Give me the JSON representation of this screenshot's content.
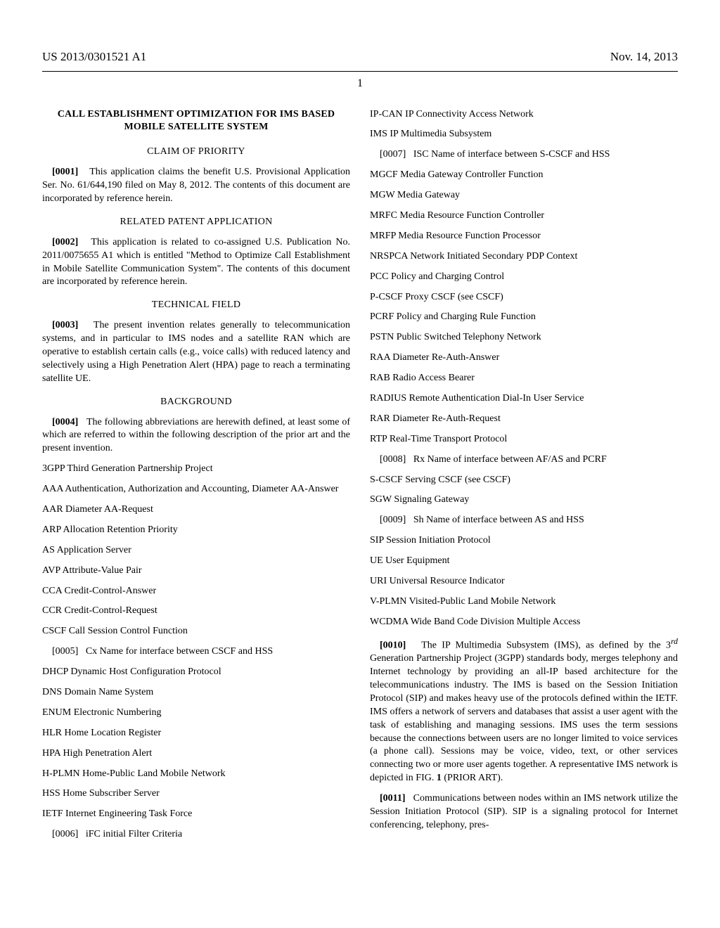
{
  "header": {
    "left": "US 2013/0301521 A1",
    "right": "Nov. 14, 2013"
  },
  "page_number": "1",
  "title": "CALL ESTABLISHMENT OPTIMIZATION FOR IMS BASED MOBILE SATELLITE SYSTEM",
  "sections": {
    "claim": "CLAIM OF PRIORITY",
    "related": "RELATED PATENT APPLICATION",
    "tech": "TECHNICAL FIELD",
    "bg": "BACKGROUND"
  },
  "p": {
    "p0001_num": "[0001]",
    "p0001": "This application claims the benefit U.S. Provisional Application Ser. No. 61/644,190 filed on May 8, 2012. The contents of this document are incorporated by reference herein.",
    "p0002_num": "[0002]",
    "p0002": "This application is related to co-assigned U.S. Publication No. 2011/0075655 A1 which is entitled \"Method to Optimize Call Establishment in Mobile Satellite Communication System\". The contents of this document are incorporated by reference herein.",
    "p0003_num": "[0003]",
    "p0003": "The present invention relates generally to telecommunication systems, and in particular to IMS nodes and a satellite RAN which are operative to establish certain calls (e.g., voice calls) with reduced latency and selectively using a High Penetration Alert (HPA) page to reach a terminating satellite UE.",
    "p0004_num": "[0004]",
    "p0004": "The following abbreviations are herewith defined, at least some of which are referred to within the following description of the prior art and the present invention.",
    "p0005_num": "[0005]",
    "p0005": "Cx Name for interface between CSCF and HSS",
    "p0006_num": "[0006]",
    "p0006": "iFC initial Filter Criteria",
    "p0007_num": "[0007]",
    "p0007": "ISC Name of interface between S-CSCF and HSS",
    "p0008_num": "[0008]",
    "p0008": "Rx Name of interface between AF/AS and PCRF",
    "p0009_num": "[0009]",
    "p0009": "Sh Name of interface between AS and HSS",
    "p0010_num": "[0010]",
    "p0010_a": "The IP Multimedia Subsystem (IMS), as defined by the 3",
    "p0010_sup": "rd",
    "p0010_b": " Generation Partnership Project (3GPP) standards body, merges telephony and Internet technology by providing an all-IP based architecture for the telecommunications industry. The IMS is based on the Session Initiation Protocol (SIP) and makes heavy use of the protocols defined within the IETF. IMS offers a network of servers and databases that assist a user agent with the task of establishing and managing sessions. IMS uses the term sessions because the connections between users are no longer limited to voice services (a phone call). Sessions may be voice, video, text, or other services connecting two or more user agents together. A representative IMS network is depicted in FIG. ",
    "p0010_fig": "1",
    "p0010_c": " (PRIOR ART).",
    "p0011_num": "[0011]",
    "p0011": "Communications between nodes within an IMS network utilize the Session Initiation Protocol (SIP). SIP is a signaling protocol for Internet conferencing, telephony, pres-"
  },
  "abbr": {
    "a3gpp": "3GPP Third Generation Partnership Project",
    "aaa": "AAA Authentication, Authorization and Accounting, Diameter AA-Answer",
    "aar": "AAR Diameter AA-Request",
    "arp": "ARP Allocation Retention Priority",
    "as": "AS Application Server",
    "avp": "AVP Attribute-Value Pair",
    "cca": "CCA Credit-Control-Answer",
    "ccr": "CCR Credit-Control-Request",
    "cscf": "CSCF Call Session Control Function",
    "dhcp": "DHCP Dynamic Host Configuration Protocol",
    "dns": "DNS Domain Name System",
    "enum": "ENUM Electronic Numbering",
    "hlr": "HLR Home Location Register",
    "hpa": "HPA High Penetration Alert",
    "hplmn": "H-PLMN Home-Public Land Mobile Network",
    "hss": "HSS Home Subscriber Server",
    "ietf": "IETF Internet Engineering Task Force",
    "ipcan": "IP-CAN IP Connectivity Access Network",
    "ims": "IMS IP Multimedia Subsystem",
    "mgcf": "MGCF Media Gateway Controller Function",
    "mgw": "MGW Media Gateway",
    "mrfc": "MRFC Media Resource Function Controller",
    "mrfp": "MRFP Media Resource Function Processor",
    "nrspca": "NRSPCA Network Initiated Secondary PDP Context",
    "pcc": "PCC Policy and Charging Control",
    "pcscf": "P-CSCF Proxy CSCF (see CSCF)",
    "pcrf": "PCRF Policy and Charging Rule Function",
    "pstn": "PSTN Public Switched Telephony Network",
    "raa": "RAA Diameter Re-Auth-Answer",
    "rab": "RAB Radio Access Bearer",
    "radius": "RADIUS Remote Authentication Dial-In User Service",
    "rar": "RAR Diameter Re-Auth-Request",
    "rtp": "RTP Real-Time Transport Protocol",
    "scscf": "S-CSCF Serving CSCF (see CSCF)",
    "sgw": "SGW Signaling Gateway",
    "sip": "SIP Session Initiation Protocol",
    "ue": "UE User Equipment",
    "uri": "URI Universal Resource Indicator",
    "vplmn": "V-PLMN Visited-Public Land Mobile Network",
    "wcdma": "WCDMA Wide Band Code Division Multiple Access"
  }
}
